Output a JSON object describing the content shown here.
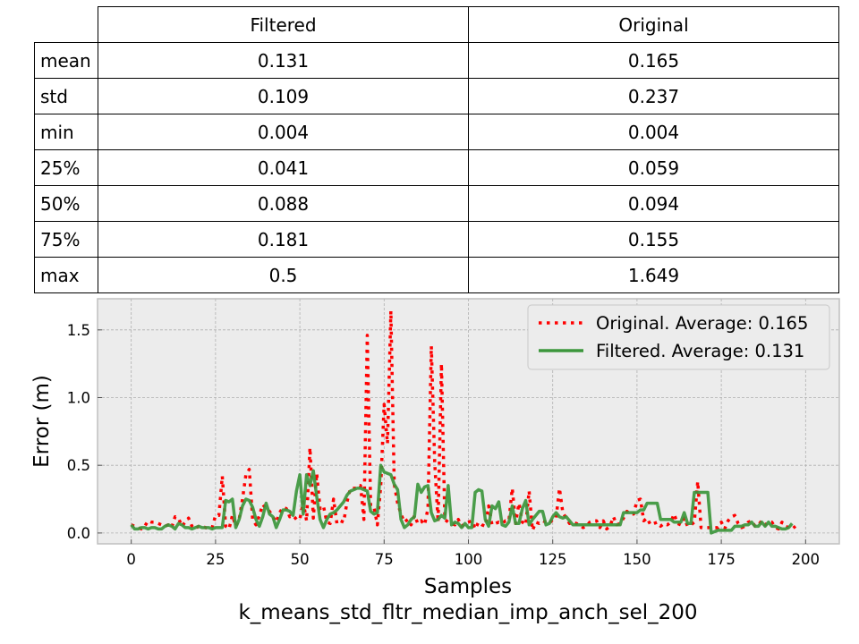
{
  "table": {
    "columns": [
      "Filtered",
      "Original"
    ],
    "rows": [
      {
        "label": "mean",
        "values": [
          "0.131",
          "0.165"
        ]
      },
      {
        "label": "std",
        "values": [
          "0.109",
          "0.237"
        ]
      },
      {
        "label": "min",
        "values": [
          "0.004",
          "0.004"
        ]
      },
      {
        "label": "25%",
        "values": [
          "0.041",
          "0.059"
        ]
      },
      {
        "label": "50%",
        "values": [
          "0.088",
          "0.094"
        ]
      },
      {
        "label": "75%",
        "values": [
          "0.181",
          "0.155"
        ]
      },
      {
        "label": "max",
        "values": [
          "0.5",
          "1.649"
        ]
      }
    ]
  },
  "chart_data": {
    "type": "line",
    "title": "",
    "xlabel": "Samples",
    "subtitle": "k_means_std_fltr_median_imp_anch_sel_200",
    "ylabel": "Error (m)",
    "xlim": [
      -10,
      210
    ],
    "ylim": [
      -0.08,
      1.73
    ],
    "xticks": [
      0,
      25,
      50,
      75,
      100,
      125,
      150,
      175,
      200
    ],
    "yticks": [
      0.0,
      0.5,
      1.0,
      1.5
    ],
    "ytick_labels": [
      "0.0",
      "0.5",
      "1.0",
      "1.5"
    ],
    "grid": true,
    "legend_position": "top-right",
    "colors": {
      "original": "#ff0000",
      "filtered": "#3c963c",
      "background": "#ececec"
    },
    "series": [
      {
        "name": "Original. Average: 0.165",
        "style": "dotted",
        "color": "#ff0000",
        "values": [
          0.06,
          0.05,
          0.04,
          0.03,
          0.05,
          0.09,
          0.08,
          0.08,
          0.07,
          0.06,
          0.05,
          0.06,
          0.04,
          0.12,
          0.11,
          0.05,
          0.08,
          0.11,
          0.05,
          0.03,
          0.05,
          0.05,
          0.04,
          0.03,
          0.04,
          0.13,
          0.13,
          0.42,
          0.05,
          0.03,
          0.13,
          0.05,
          0.1,
          0.25,
          0.43,
          0.47,
          0.1,
          0.06,
          0.13,
          0.21,
          0.18,
          0.16,
          0.12,
          0.08,
          0.15,
          0.19,
          0.18,
          0.12,
          0.13,
          0.1,
          0.1,
          0.23,
          0.09,
          0.63,
          0.11,
          0.44,
          0.18,
          0.2,
          0.08,
          0.07,
          0.25,
          0.07,
          0.09,
          0.08,
          0.23,
          0.33,
          0.33,
          0.33,
          0.35,
          0.1,
          1.46,
          0.2,
          0.19,
          0.06,
          0.35,
          0.95,
          0.66,
          1.64,
          0.36,
          0.22,
          0.14,
          0.08,
          0.1,
          0.06,
          0.13,
          0.07,
          0.09,
          0.06,
          0.18,
          1.38,
          0.52,
          0.08,
          1.25,
          0.1,
          0.08,
          0.07,
          0.06,
          0.1,
          0.05,
          0.07,
          0.08,
          0.09,
          0.03,
          0.08,
          0.06,
          0.05,
          0.2,
          0.06,
          0.07,
          0.08,
          0.07,
          0.09,
          0.09,
          0.33,
          0.07,
          0.22,
          0.08,
          0.06,
          0.31,
          0.02,
          0.08,
          0.07,
          0.09,
          0.08,
          0.07,
          0.1,
          0.11,
          0.33,
          0.15,
          0.11,
          0.07,
          0.08,
          0.07,
          0.06,
          0.04,
          0.05,
          0.08,
          0.09,
          0.09,
          0.04,
          0.09,
          0.03,
          0.05,
          0.12,
          0.06,
          0.07,
          0.11,
          0.16,
          0.14,
          0.14,
          0.24,
          0.25,
          0.09,
          0.11,
          0.06,
          0.07,
          0.08,
          0.05,
          0.07,
          0.06,
          0.08,
          0.14,
          0.07,
          0.06,
          0.11,
          0.05,
          0.06,
          0.08,
          0.38,
          0.04,
          0.04,
          0.04,
          0.04,
          0.04,
          0.04,
          0.08,
          0.03,
          0.09,
          0.12,
          0.13,
          0.07,
          0.04,
          0.05,
          0.08,
          0.09,
          0.05,
          0.06,
          0.09,
          0.06,
          0.08,
          0.08,
          0.04,
          0.03,
          0.08,
          0.05,
          0.04,
          0.03,
          0.05
        ]
      },
      {
        "name": "Filtered. Average: 0.131",
        "style": "solid",
        "color": "#3c963c",
        "values": [
          0.06,
          0.03,
          0.03,
          0.04,
          0.04,
          0.03,
          0.04,
          0.04,
          0.03,
          0.03,
          0.05,
          0.06,
          0.05,
          0.03,
          0.07,
          0.06,
          0.04,
          0.04,
          0.03,
          0.04,
          0.05,
          0.04,
          0.04,
          0.04,
          0.03,
          0.04,
          0.04,
          0.04,
          0.24,
          0.23,
          0.25,
          0.04,
          0.1,
          0.2,
          0.25,
          0.24,
          0.19,
          0.1,
          0.05,
          0.12,
          0.22,
          0.14,
          0.12,
          0.04,
          0.1,
          0.17,
          0.17,
          0.16,
          0.13,
          0.31,
          0.43,
          0.14,
          0.43,
          0.35,
          0.46,
          0.27,
          0.1,
          0.04,
          0.1,
          0.14,
          0.15,
          0.17,
          0.2,
          0.23,
          0.28,
          0.31,
          0.32,
          0.33,
          0.33,
          0.32,
          0.31,
          0.16,
          0.14,
          0.15,
          0.5,
          0.45,
          0.44,
          0.43,
          0.36,
          0.32,
          0.1,
          0.04,
          0.06,
          0.1,
          0.12,
          0.36,
          0.3,
          0.34,
          0.35,
          0.15,
          0.09,
          0.1,
          0.13,
          0.11,
          0.35,
          0.06,
          0.08,
          0.07,
          0.04,
          0.07,
          0.04,
          0.04,
          0.3,
          0.32,
          0.31,
          0.1,
          0.05,
          0.2,
          0.18,
          0.23,
          0.06,
          0.05,
          0.08,
          0.2,
          0.07,
          0.07,
          0.18,
          0.24,
          0.06,
          0.1,
          0.13,
          0.16,
          0.16,
          0.06,
          0.07,
          0.12,
          0.15,
          0.12,
          0.11,
          0.12,
          0.09,
          0.06,
          0.06,
          0.06,
          0.06,
          0.06,
          0.06,
          0.06,
          0.06,
          0.06,
          0.06,
          0.06,
          0.06,
          0.06,
          0.06,
          0.06,
          0.15,
          0.15,
          0.15,
          0.15,
          0.15,
          0.17,
          0.17,
          0.22,
          0.22,
          0.22,
          0.22,
          0.1,
          0.1,
          0.1,
          0.1,
          0.08,
          0.08,
          0.08,
          0.15,
          0.07,
          0.07,
          0.3,
          0.3,
          0.3,
          0.3,
          0.3,
          0.0,
          0.01,
          0.02,
          0.02,
          0.02,
          0.02,
          0.02,
          0.05,
          0.05,
          0.05,
          0.06,
          0.06,
          0.08,
          0.05,
          0.05,
          0.08,
          0.05,
          0.08,
          0.05,
          0.05,
          0.04,
          0.03,
          0.03,
          0.04,
          0.07
        ]
      }
    ]
  }
}
